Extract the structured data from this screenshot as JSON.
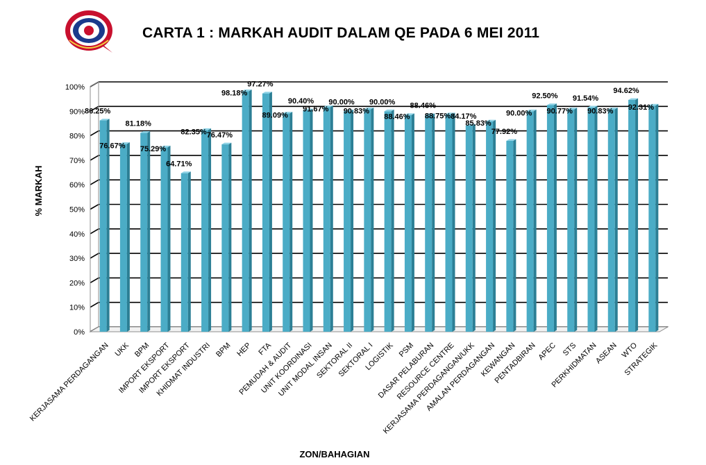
{
  "chart_data": {
    "type": "bar",
    "title": "CARTA 1 : MARKAH AUDIT DALAM QE PADA 6 MEI 2011",
    "xlabel": "ZON/BAHAGIAN",
    "ylabel": "% MARKAH",
    "ylim": [
      0,
      100
    ],
    "yticks": [
      "0%",
      "10%",
      "20%",
      "30%",
      "40%",
      "50%",
      "60%",
      "70%",
      "80%",
      "90%",
      "100%"
    ],
    "grid": true,
    "bar_color": "#4bacc6",
    "categories": [
      "KERJASAMA PERDAGANGAN",
      "UKK",
      "BPM",
      "IMPORT EKSPORT",
      "IMPORT EKSPORT",
      "KHIDMAT INDUSTRI",
      "BPM",
      "HEP",
      "FTA",
      "PEMUDAH & AUDIT",
      "UNIT KOORDINASI",
      "UNIT MODAL INSAN",
      "SEKTORAL II",
      "SEKTORAL I",
      "LOGISTIK",
      "PSM",
      "DASAR PELABURAN",
      "RESOURCE CENTRE",
      "KERJASAMA PERDAGANGAN/UKK",
      "AMALAN PERDAGANGAN",
      "KEWANGAN",
      "PENTADBIRAN",
      "APEC",
      "STS",
      "PERKHIDMATAN",
      "ASEAN",
      "WTO",
      "STRATEGIK"
    ],
    "values": [
      86.25,
      76.67,
      81.18,
      75.29,
      64.71,
      82.35,
      76.47,
      98.18,
      97.27,
      89.09,
      90.4,
      91.67,
      90.0,
      90.83,
      90.0,
      88.46,
      88.46,
      88.75,
      84.17,
      85.83,
      77.92,
      90.0,
      92.5,
      90.77,
      91.54,
      90.83,
      94.62,
      92.31
    ],
    "labels": [
      "86.25%",
      "76.67%",
      "81.18%",
      "75.29%",
      "64.71%",
      "82.35%",
      "76.47%",
      "98.18%",
      "97.27%",
      "89.09%",
      "90.40%",
      "91.67%",
      "90.00%",
      "90.83%",
      "90.00%",
      "88.46%",
      "88.46%",
      "88.75%",
      "84.17%",
      "85.83%",
      "77.92%",
      "90.00%",
      "92.50%",
      "90.77%",
      "91.54%",
      "90.83%",
      "94.62%",
      "92.31%"
    ]
  },
  "logo": {
    "name": "ministry-seal-logo",
    "colors": [
      "#c8102e",
      "#1a3a8c",
      "#f4d03f"
    ]
  }
}
